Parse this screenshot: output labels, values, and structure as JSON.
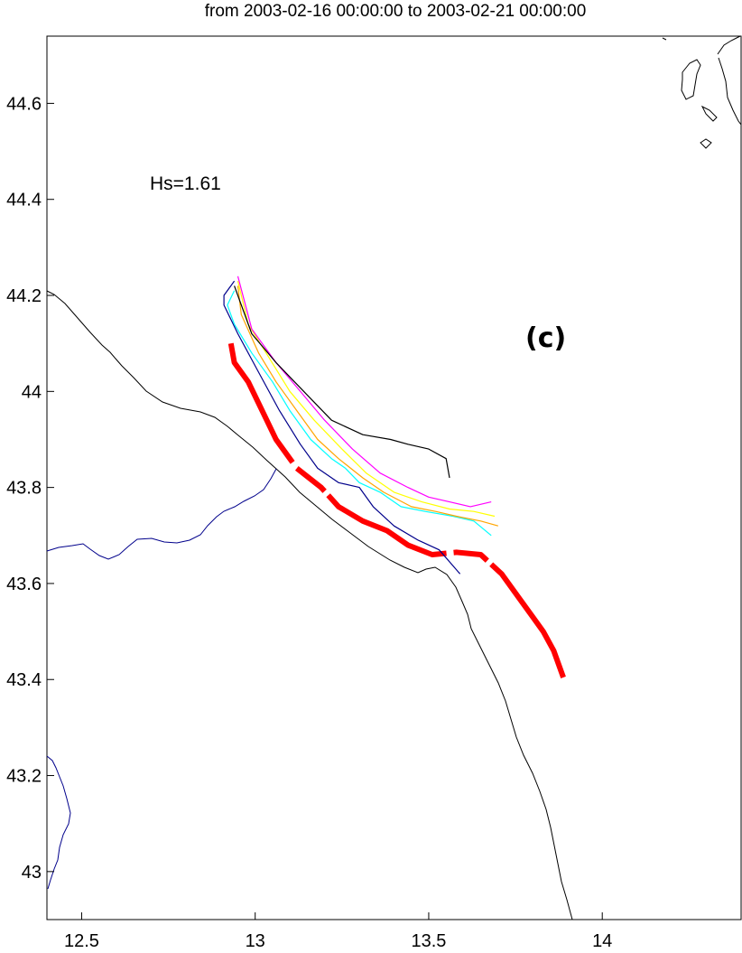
{
  "title": "from 2003-02-16 00:00:00 to 2003-02-21 00:00:00",
  "annotation": "Hs=1.61",
  "panel_label": "(c)",
  "chart_data": {
    "type": "map",
    "xlim": [
      12.4,
      14.4
    ],
    "ylim": [
      42.9,
      44.74
    ],
    "x_ticks": [
      12.5,
      13,
      13.5,
      14
    ],
    "x_tick_labels": [
      "12.5",
      "13",
      "13.5",
      "14"
    ],
    "y_ticks": [
      43,
      43.2,
      43.4,
      43.6,
      43.8,
      44,
      44.2,
      44.4,
      44.6
    ],
    "y_tick_labels": [
      "43",
      "43.2",
      "43.4",
      "43.6",
      "43.8",
      "44",
      "44.2",
      "44.4",
      "44.6"
    ],
    "grid": false,
    "colors": {
      "coastline": "#000000",
      "river": "#00008b",
      "track": "#ff0000"
    },
    "series": [
      {
        "style": "thick-red",
        "color": "#ff0000",
        "points": [
          [
            12.93,
            44.1
          ],
          [
            12.94,
            44.06
          ],
          [
            12.98,
            44.02
          ],
          [
            13.02,
            43.96
          ],
          [
            13.06,
            43.9
          ],
          [
            13.12,
            43.84
          ],
          [
            13.19,
            43.8
          ],
          [
            13.24,
            43.76
          ],
          [
            13.31,
            43.73
          ],
          [
            13.38,
            43.71
          ],
          [
            13.44,
            43.68
          ],
          [
            13.51,
            43.66
          ],
          [
            13.58,
            43.665
          ],
          [
            13.65,
            43.66
          ],
          [
            13.71,
            43.62
          ],
          [
            13.76,
            43.57
          ],
          [
            13.8,
            43.53
          ],
          [
            13.83,
            43.5
          ],
          [
            13.86,
            43.46
          ],
          [
            13.89,
            43.4
          ]
        ]
      },
      {
        "style": "thin",
        "color": "#00008b",
        "points": [
          [
            12.94,
            44.23
          ],
          [
            12.91,
            44.2
          ],
          [
            12.91,
            44.18
          ],
          [
            12.95,
            44.12
          ],
          [
            13.01,
            44.04
          ],
          [
            13.07,
            43.96
          ],
          [
            13.13,
            43.89
          ],
          [
            13.18,
            43.84
          ],
          [
            13.24,
            43.81
          ],
          [
            13.3,
            43.8
          ],
          [
            13.34,
            43.76
          ],
          [
            13.4,
            43.72
          ],
          [
            13.47,
            43.69
          ],
          [
            13.53,
            43.67
          ],
          [
            13.59,
            43.62
          ]
        ]
      },
      {
        "style": "thin",
        "color": "#00ffff",
        "points": [
          [
            12.94,
            44.21
          ],
          [
            12.92,
            44.18
          ],
          [
            12.94,
            44.14
          ],
          [
            12.99,
            44.08
          ],
          [
            13.05,
            44.02
          ],
          [
            13.1,
            43.96
          ],
          [
            13.16,
            43.9
          ],
          [
            13.22,
            43.86
          ],
          [
            13.26,
            43.84
          ],
          [
            13.3,
            43.81
          ],
          [
            13.36,
            43.79
          ],
          [
            13.42,
            43.76
          ],
          [
            13.49,
            43.75
          ],
          [
            13.57,
            43.74
          ],
          [
            13.63,
            43.73
          ],
          [
            13.68,
            43.7
          ]
        ]
      },
      {
        "style": "thin",
        "color": "#ffa500",
        "points": [
          [
            12.95,
            44.22
          ],
          [
            12.96,
            44.16
          ],
          [
            13.01,
            44.08
          ],
          [
            13.06,
            44.02
          ],
          [
            13.12,
            43.96
          ],
          [
            13.18,
            43.9
          ],
          [
            13.24,
            43.86
          ],
          [
            13.31,
            43.82
          ],
          [
            13.37,
            43.79
          ],
          [
            13.45,
            43.76
          ],
          [
            13.52,
            43.75
          ],
          [
            13.58,
            43.74
          ],
          [
            13.65,
            43.73
          ],
          [
            13.7,
            43.72
          ]
        ]
      },
      {
        "style": "thin",
        "color": "#ffff00",
        "points": [
          [
            12.95,
            44.23
          ],
          [
            12.98,
            44.14
          ],
          [
            13.04,
            44.07
          ],
          [
            13.1,
            44.0
          ],
          [
            13.17,
            43.94
          ],
          [
            13.25,
            43.88
          ],
          [
            13.32,
            43.83
          ],
          [
            13.4,
            43.79
          ],
          [
            13.48,
            43.77
          ],
          [
            13.56,
            43.755
          ],
          [
            13.63,
            43.75
          ],
          [
            13.69,
            43.74
          ]
        ]
      },
      {
        "style": "thin",
        "color": "#ff00ff",
        "points": [
          [
            12.95,
            44.24
          ],
          [
            12.99,
            44.13
          ],
          [
            13.06,
            44.06
          ],
          [
            13.13,
            44.0
          ],
          [
            13.2,
            43.94
          ],
          [
            13.28,
            43.88
          ],
          [
            13.36,
            43.83
          ],
          [
            13.44,
            43.8
          ],
          [
            13.5,
            43.78
          ],
          [
            13.56,
            43.77
          ],
          [
            13.62,
            43.76
          ],
          [
            13.68,
            43.77
          ]
        ]
      },
      {
        "style": "thin",
        "color": "#000000",
        "points": [
          [
            12.94,
            44.22
          ],
          [
            12.99,
            44.12
          ],
          [
            13.06,
            44.06
          ],
          [
            13.14,
            44.0
          ],
          [
            13.22,
            43.94
          ],
          [
            13.31,
            43.91
          ],
          [
            13.39,
            43.9
          ],
          [
            13.44,
            43.89
          ],
          [
            13.5,
            43.88
          ],
          [
            13.55,
            43.86
          ],
          [
            13.56,
            43.82
          ]
        ]
      }
    ]
  }
}
